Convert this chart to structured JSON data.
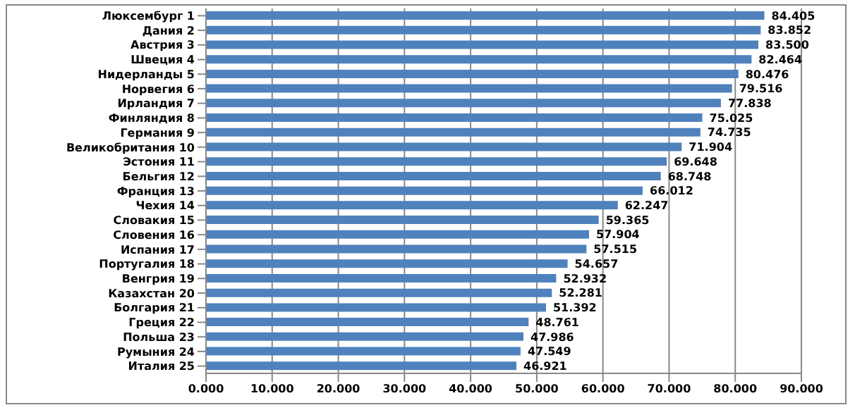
{
  "chart_data": {
    "type": "bar",
    "orientation": "horizontal",
    "categories": [
      "Люксембург 1",
      "Дания 2",
      "Австрия 3",
      "Швеция 4",
      "Нидерланды 5",
      "Норвегия 6",
      "Ирландия 7",
      "Финляндия 8",
      "Германия 9",
      "Великобритания 10",
      "Эстония 11",
      "Бельгия 12",
      "Франция 13",
      "Чехия 14",
      "Словакия 15",
      "Словения 16",
      "Испания 17",
      "Португалия 18",
      "Венгрия 19",
      "Казахстан 20",
      "Болгария 21",
      "Греция 22",
      "Польша 23",
      "Румыния 24",
      "Италия 25"
    ],
    "values": [
      84.405,
      83.852,
      83.5,
      82.464,
      80.476,
      79.516,
      77.838,
      75.025,
      74.735,
      71.904,
      69.648,
      68.748,
      66.012,
      62.247,
      59.365,
      57.904,
      57.515,
      54.657,
      52.932,
      52.281,
      51.392,
      48.761,
      47.986,
      47.549,
      46.921
    ],
    "value_labels": [
      "84.405",
      "83.852",
      "83.500",
      "82.464",
      "80.476",
      "79.516",
      "77.838",
      "75.025",
      "74.735",
      "71.904",
      "69.648",
      "68.748",
      "66.012",
      "62.247",
      "59.365",
      "57.904",
      "57.515",
      "54.657",
      "52.932",
      "52.281",
      "51.392",
      "48.761",
      "47.986",
      "47.549",
      "46.921"
    ],
    "color": "#4f81bd",
    "xlim": [
      0,
      90
    ],
    "xticks": [
      {
        "value": 0,
        "label": "0.000"
      },
      {
        "value": 10,
        "label": "10.000"
      },
      {
        "value": 20,
        "label": "20.000"
      },
      {
        "value": 30,
        "label": "30.000"
      },
      {
        "value": 40,
        "label": "40.000"
      },
      {
        "value": 50,
        "label": "50.000"
      },
      {
        "value": 60,
        "label": "60.000"
      },
      {
        "value": 70,
        "label": "70.000"
      },
      {
        "value": 80,
        "label": "80.000"
      },
      {
        "value": 90,
        "label": "90.000"
      }
    ],
    "grid": "x"
  }
}
